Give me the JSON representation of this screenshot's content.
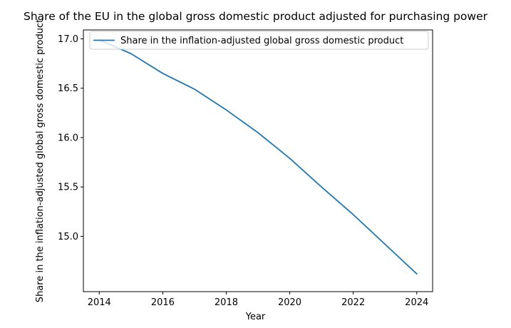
{
  "chart_data": {
    "type": "line",
    "title": "Share of the EU in the global gross domestic product adjusted for purchasing power",
    "xlabel": "Year",
    "ylabel": "Share in the inflation-adjusted global gross domestic product",
    "x": [
      2014,
      2015,
      2016,
      2017,
      2018,
      2019,
      2020,
      2021,
      2022,
      2023,
      2024
    ],
    "series": [
      {
        "name": "Share in the inflation-adjusted global gross domestic product",
        "values": [
          16.99,
          16.85,
          16.65,
          16.49,
          16.28,
          16.05,
          15.79,
          15.5,
          15.22,
          14.92,
          14.62
        ],
        "color": "#1f77b4"
      }
    ],
    "xlim": [
      2013.5,
      2024.5
    ],
    "ylim": [
      14.44,
      17.09
    ],
    "xticks": [
      "2014",
      "2016",
      "2018",
      "2020",
      "2022",
      "2024"
    ],
    "yticks": [
      "15.0",
      "15.5",
      "16.0",
      "16.5",
      "17.0"
    ],
    "grid": false,
    "legend_position": "upper-left"
  }
}
